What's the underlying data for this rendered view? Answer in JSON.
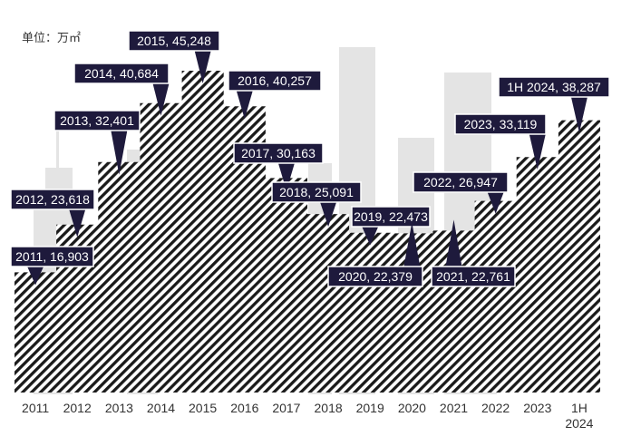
{
  "chart_data": {
    "type": "area",
    "unit_label": "单位：万㎡",
    "categories": [
      "2011",
      "2012",
      "2013",
      "2014",
      "2015",
      "2016",
      "2017",
      "2018",
      "2019",
      "2020",
      "2021",
      "2022",
      "2023",
      "1H 2024"
    ],
    "values": [
      16903,
      23618,
      32401,
      40684,
      45248,
      40257,
      30163,
      25091,
      22473,
      22379,
      22761,
      26947,
      33119,
      38287
    ],
    "data_labels": [
      "2011, 16,903",
      "2012, 23,618",
      "2013, 32,401",
      "2014, 40,684",
      "2015, 45,248",
      "2016, 40,257",
      "2017, 30,163",
      "2018, 25,091",
      "2019, 22,473",
      "2020, 22,379",
      "2021, 22,761",
      "2022, 26,947",
      "2023, 33,119",
      "1H 2024, 38,287"
    ],
    "ylim": [
      0,
      50000
    ],
    "grid": false,
    "legend": "none"
  },
  "colors": {
    "hatch": "#1a1a1a",
    "callout": "#1e1a3c",
    "skyline": "#e4e4e4",
    "text": "#333333"
  }
}
